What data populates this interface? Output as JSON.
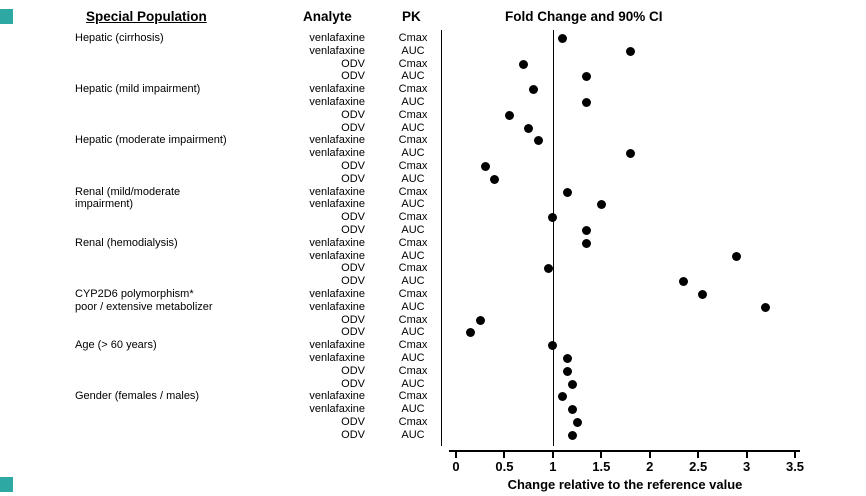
{
  "header": {
    "population": "Special Population",
    "analyte": "Analyte",
    "pk": "PK",
    "fold_change": "Fold Change and 90% CI"
  },
  "colors": {
    "accent_teal": "#2EA8A3",
    "ink": "#000000",
    "background": "#FFFFFF"
  },
  "chart_data": {
    "type": "scatter",
    "title": "Fold Change and 90% CI",
    "xlabel": "Change relative to the reference value",
    "xlim": [
      0,
      3.5
    ],
    "x_ticks": [
      0,
      0.5,
      1,
      1.5,
      2,
      2.5,
      3,
      3.5
    ],
    "reference_line": 1,
    "grid": false,
    "groups": [
      {
        "population": [
          "Hepatic (cirrhosis)"
        ],
        "rows": [
          {
            "analyte": "venlafaxine",
            "pk": "Cmax",
            "value": 1.1
          },
          {
            "analyte": "venlafaxine",
            "pk": "AUC",
            "value": 1.8
          },
          {
            "analyte": "ODV",
            "pk": "Cmax",
            "value": 0.7
          },
          {
            "analyte": "ODV",
            "pk": "AUC",
            "value": 1.35
          }
        ]
      },
      {
        "population": [
          "Hepatic (mild impairment)"
        ],
        "rows": [
          {
            "analyte": "venlafaxine",
            "pk": "Cmax",
            "value": 0.8
          },
          {
            "analyte": "venlafaxine",
            "pk": "AUC",
            "value": 1.35
          },
          {
            "analyte": "ODV",
            "pk": "Cmax",
            "value": 0.55
          },
          {
            "analyte": "ODV",
            "pk": "AUC",
            "value": 0.75
          }
        ]
      },
      {
        "population": [
          "Hepatic (moderate impairment)"
        ],
        "rows": [
          {
            "analyte": "venlafaxine",
            "pk": "Cmax",
            "value": 0.85
          },
          {
            "analyte": "venlafaxine",
            "pk": "AUC",
            "value": 1.8
          },
          {
            "analyte": "ODV",
            "pk": "Cmax",
            "value": 0.3
          },
          {
            "analyte": "ODV",
            "pk": "AUC",
            "value": 0.4
          }
        ]
      },
      {
        "population": [
          "Renal (mild/moderate",
          "impairment)"
        ],
        "rows": [
          {
            "analyte": "venlafaxine",
            "pk": "Cmax",
            "value": 1.15
          },
          {
            "analyte": "venlafaxine",
            "pk": "AUC",
            "value": 1.5
          },
          {
            "analyte": "ODV",
            "pk": "Cmax",
            "value": 1.0
          },
          {
            "analyte": "ODV",
            "pk": "AUC",
            "value": 1.35
          }
        ]
      },
      {
        "population": [
          "Renal (hemodialysis)"
        ],
        "rows": [
          {
            "analyte": "venlafaxine",
            "pk": "Cmax",
            "value": 1.35
          },
          {
            "analyte": "venlafaxine",
            "pk": "AUC",
            "value": 2.9
          },
          {
            "analyte": "ODV",
            "pk": "Cmax",
            "value": 0.95
          },
          {
            "analyte": "ODV",
            "pk": "AUC",
            "value": 2.35
          }
        ]
      },
      {
        "population": [
          "CYP2D6 polymorphism*",
          "poor / extensive metabolizer"
        ],
        "rows": [
          {
            "analyte": "venlafaxine",
            "pk": "Cmax",
            "value": 2.55
          },
          {
            "analyte": "venlafaxine",
            "pk": "AUC",
            "value": 3.2
          },
          {
            "analyte": "ODV",
            "pk": "Cmax",
            "value": 0.25
          },
          {
            "analyte": "ODV",
            "pk": "AUC",
            "value": 0.15
          }
        ]
      },
      {
        "population": [
          "Age (> 60 years)"
        ],
        "rows": [
          {
            "analyte": "venlafaxine",
            "pk": "Cmax",
            "value": 1.0
          },
          {
            "analyte": "venlafaxine",
            "pk": "AUC",
            "value": 1.15
          },
          {
            "analyte": "ODV",
            "pk": "Cmax",
            "value": 1.15
          },
          {
            "analyte": "ODV",
            "pk": "AUC",
            "value": 1.2
          }
        ]
      },
      {
        "population": [
          "Gender (females / males)"
        ],
        "rows": [
          {
            "analyte": "venlafaxine",
            "pk": "Cmax",
            "value": 1.1
          },
          {
            "analyte": "venlafaxine",
            "pk": "AUC",
            "value": 1.2
          },
          {
            "analyte": "ODV",
            "pk": "Cmax",
            "value": 1.25
          },
          {
            "analyte": "ODV",
            "pk": "AUC",
            "value": 1.2
          }
        ]
      }
    ]
  }
}
